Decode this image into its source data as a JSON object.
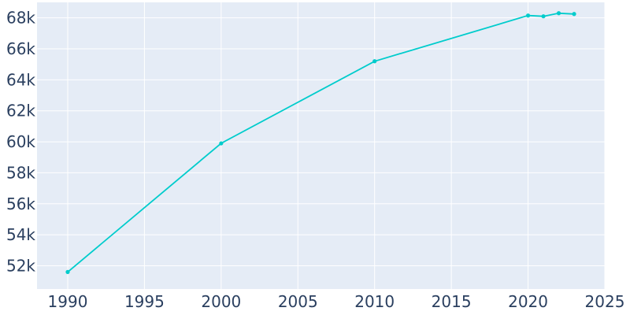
{
  "chart_data": {
    "type": "line",
    "x": [
      1990,
      2000,
      2010,
      2020,
      2021,
      2022,
      2023
    ],
    "series": [
      {
        "values": [
          51600,
          59900,
          65200,
          68150,
          68100,
          68300,
          68250
        ]
      }
    ],
    "xlim": [
      1988,
      2025
    ],
    "ylim": [
      50500,
      69000
    ],
    "x_ticks": [
      1990,
      1995,
      2000,
      2005,
      2010,
      2015,
      2020,
      2025
    ],
    "x_tick_labels": [
      "1990",
      "1995",
      "2000",
      "2005",
      "2010",
      "2015",
      "2020",
      "2025"
    ],
    "y_ticks": [
      52000,
      54000,
      56000,
      58000,
      60000,
      62000,
      64000,
      66000,
      68000
    ],
    "y_tick_labels": [
      "52k",
      "54k",
      "56k",
      "58k",
      "60k",
      "62k",
      "64k",
      "66k",
      "68k"
    ],
    "grid": true,
    "colors": {
      "line": "#00cccc",
      "plot_bg": "#e5ecf6",
      "grid": "#ffffff",
      "tick_text": "#2a3f5f"
    }
  }
}
